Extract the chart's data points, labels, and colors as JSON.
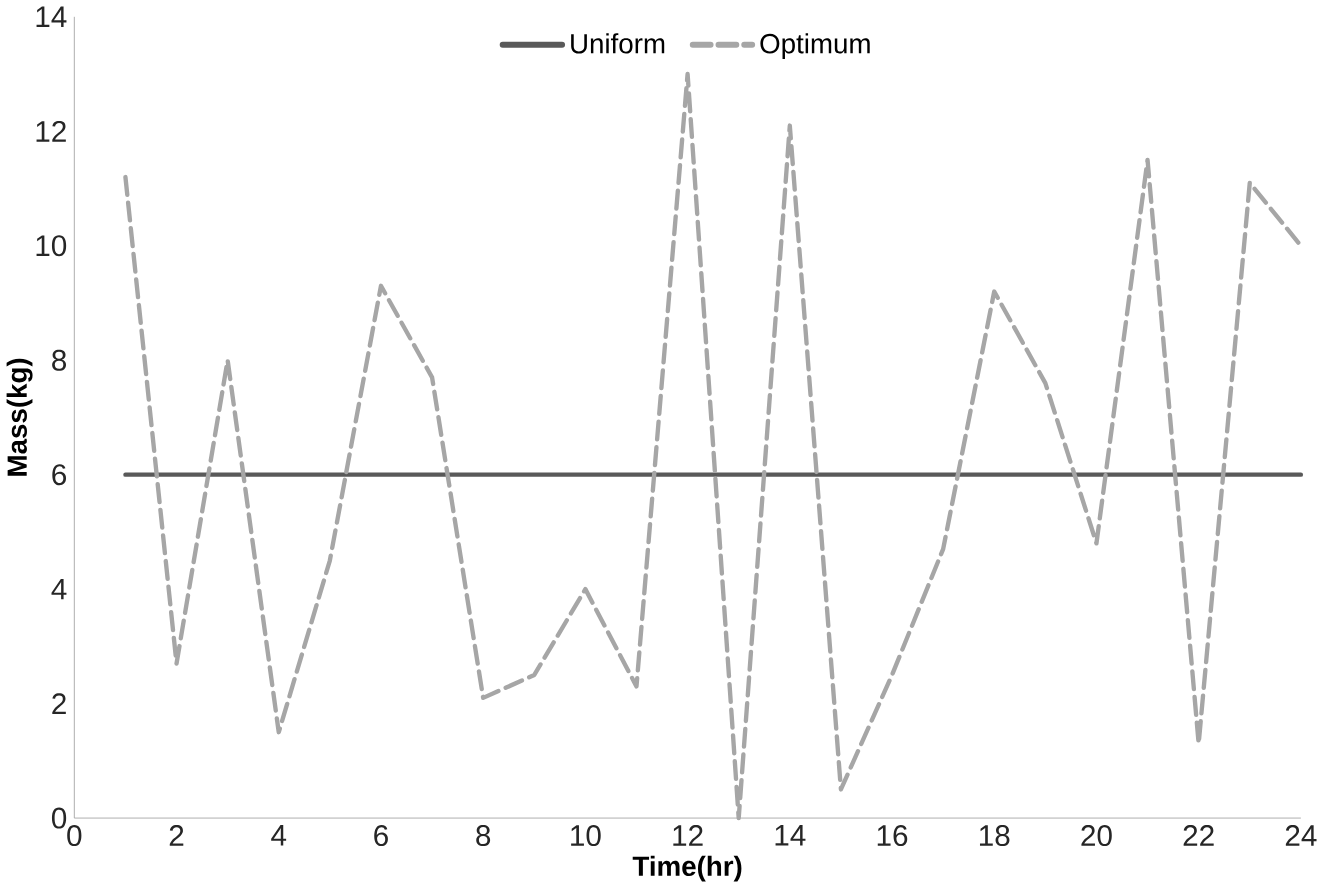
{
  "chart_data": {
    "type": "line",
    "xlabel": "Time(hr)",
    "ylabel": "Mass(kg)",
    "x": [
      1,
      2,
      3,
      4,
      5,
      6,
      7,
      8,
      9,
      10,
      11,
      12,
      13,
      14,
      15,
      16,
      17,
      18,
      19,
      20,
      21,
      22,
      23,
      24
    ],
    "series": [
      {
        "name": "Uniform",
        "color": "#595959",
        "line_style": "solid",
        "values": [
          6,
          6,
          6,
          6,
          6,
          6,
          6,
          6,
          6,
          6,
          6,
          6,
          6,
          6,
          6,
          6,
          6,
          6,
          6,
          6,
          6,
          6,
          6,
          6
        ]
      },
      {
        "name": "Optimum",
        "color": "#a6a6a6",
        "line_style": "dashed",
        "values": [
          11.2,
          2.7,
          8.0,
          1.5,
          4.5,
          9.3,
          7.7,
          2.1,
          2.5,
          4.0,
          2.3,
          13.0,
          0,
          12.1,
          0.5,
          2.5,
          4.7,
          9.2,
          7.6,
          4.8,
          11.5,
          1.3,
          11.1,
          10.0
        ]
      }
    ],
    "xlim": [
      0,
      24
    ],
    "ylim": [
      0,
      14
    ],
    "xticks": [
      0,
      2,
      4,
      6,
      8,
      10,
      12,
      14,
      16,
      18,
      20,
      22,
      24
    ],
    "yticks": [
      0,
      2,
      4,
      6,
      8,
      10,
      12,
      14
    ],
    "grid": false,
    "legend": "top",
    "marker": "none"
  }
}
